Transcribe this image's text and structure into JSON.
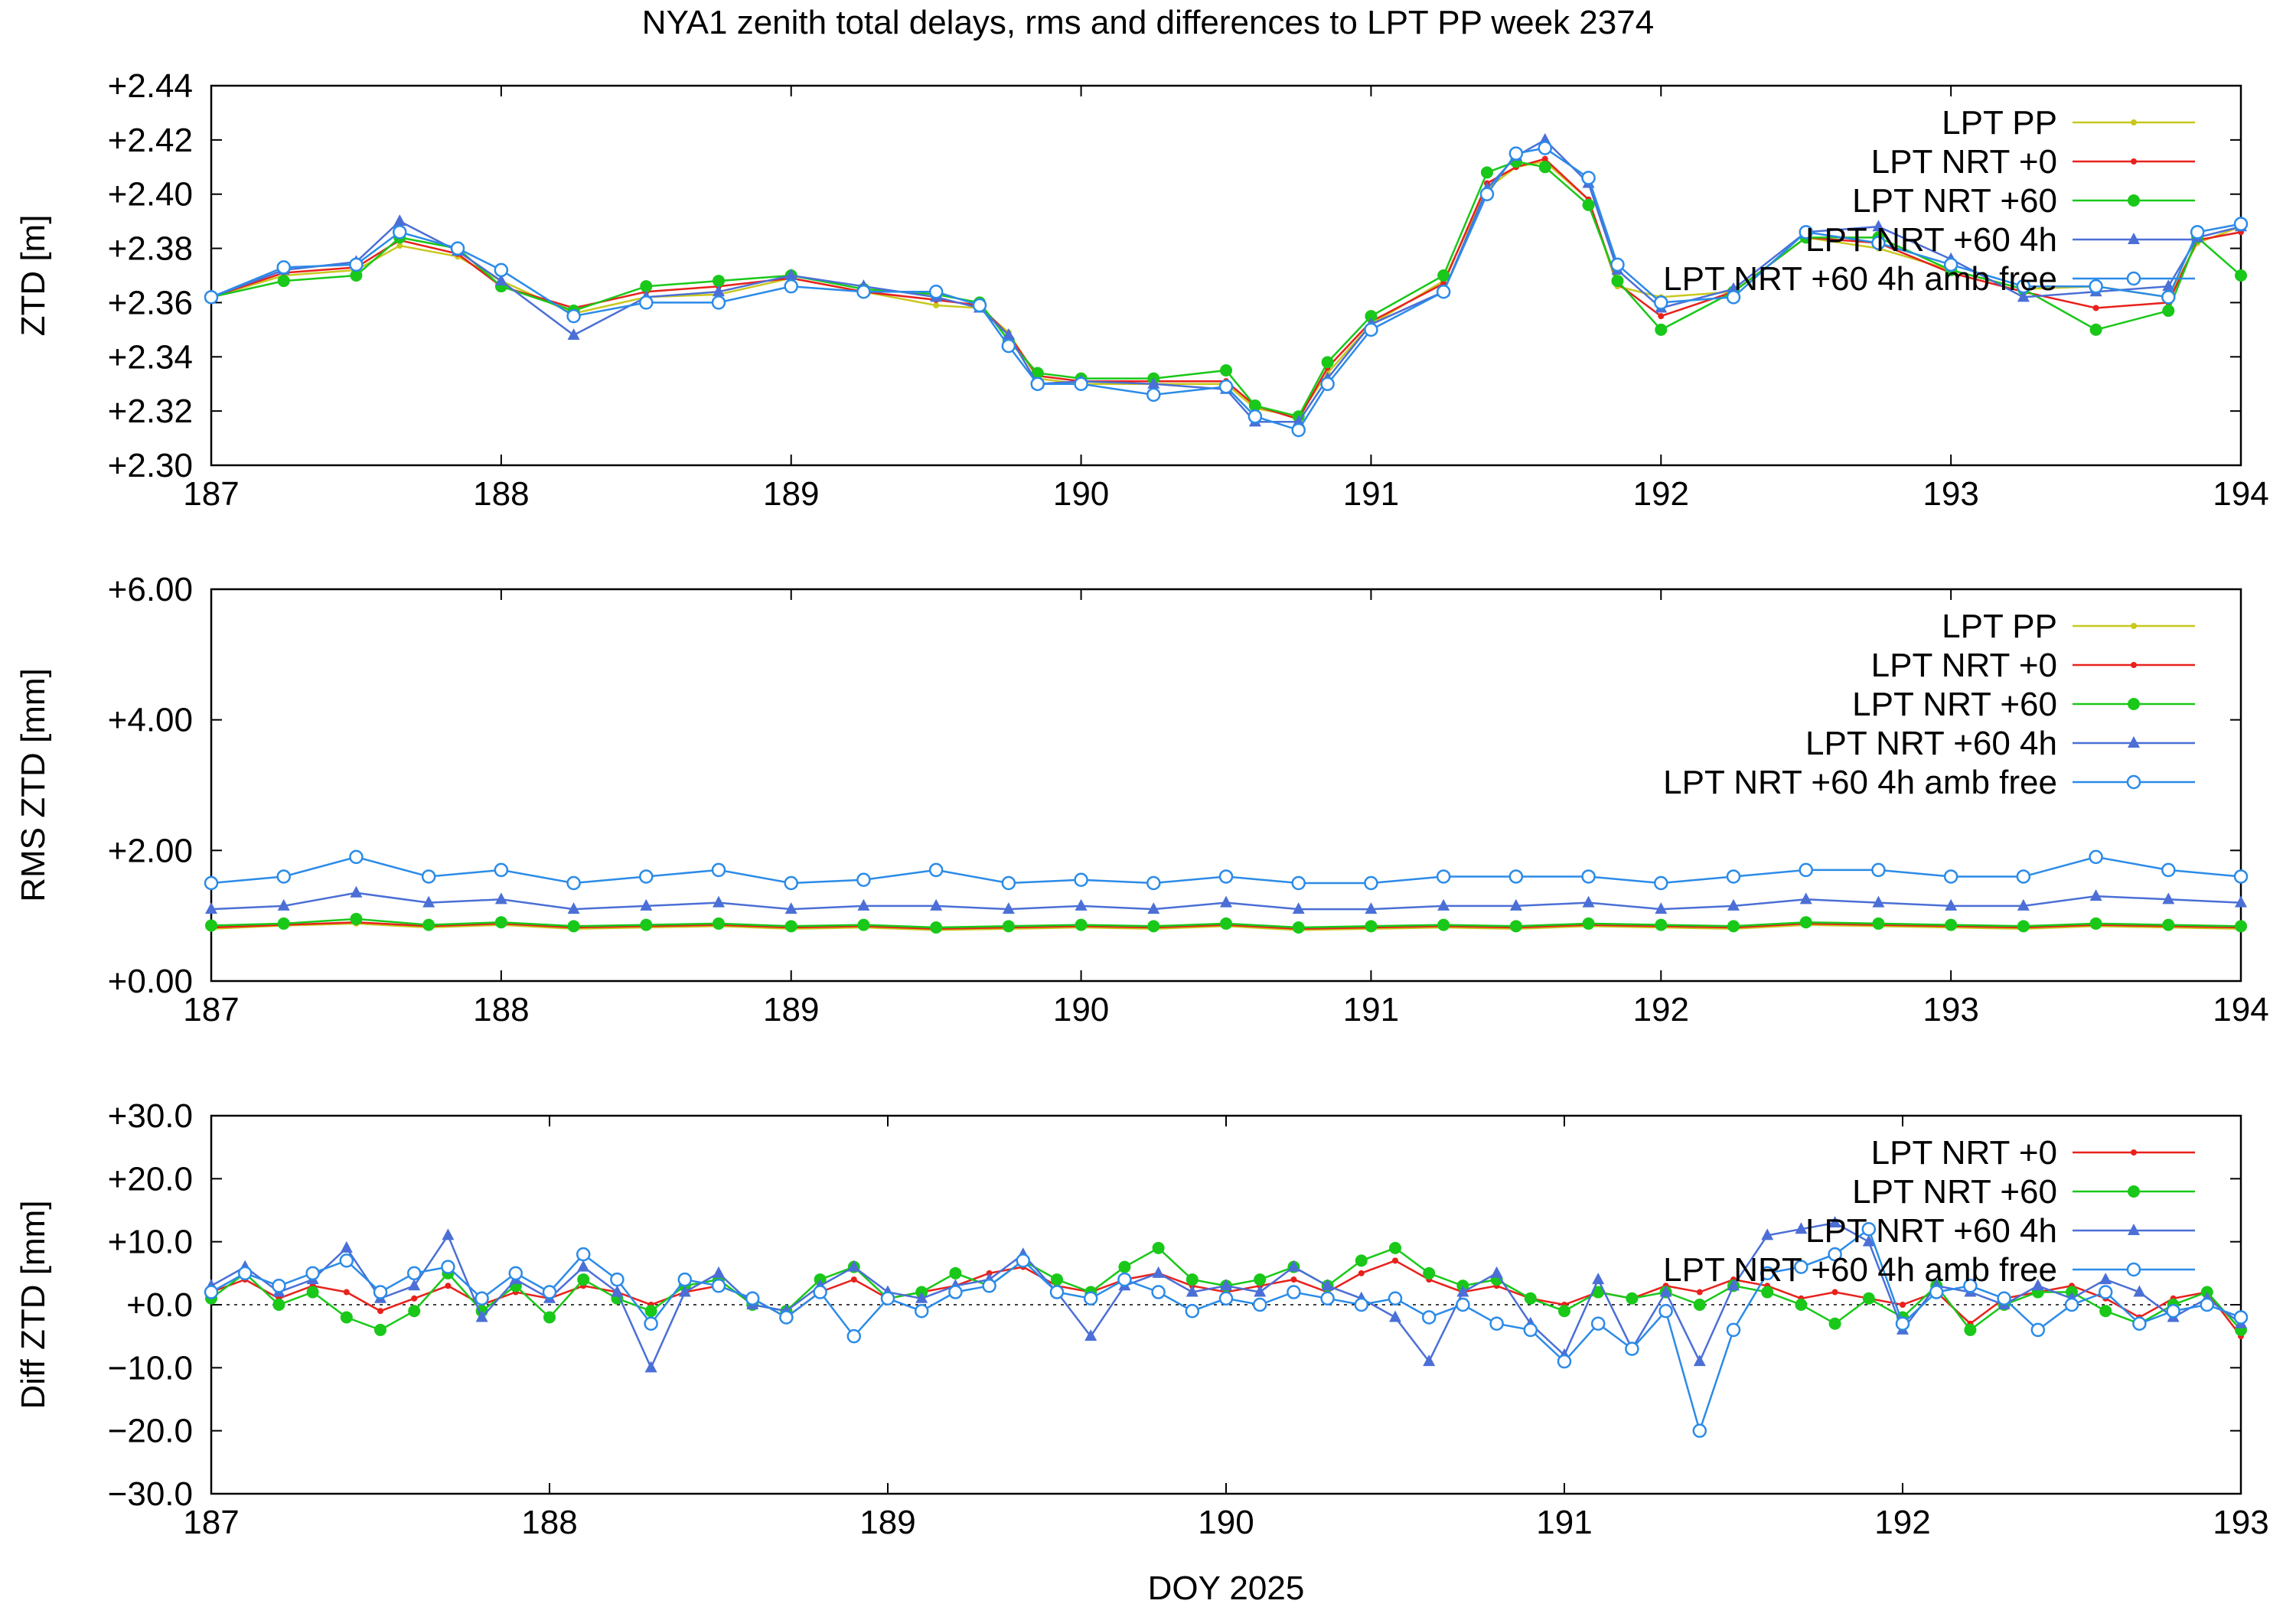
{
  "figure": {
    "title": "NYA1 zenith total delays, rms and differences to LPT PP week 2374",
    "xlabel": "DOY 2025"
  },
  "series_colors": {
    "LPT PP": "#c8c81e",
    "LPT NRT +0": "#e8211c",
    "LPT NRT +60": "#19c819",
    "LPT NRT +60 4h": "#4b6fd6",
    "LPT NRT +60 4h amb free": "#2b8be8"
  },
  "chart_data": [
    {
      "type": "line",
      "title": "",
      "ylabel": "ZTD [m]",
      "xlim": [
        187,
        194
      ],
      "ylim": [
        2.3,
        2.44
      ],
      "xticks": [
        "187",
        "188",
        "189",
        "190",
        "191",
        "192",
        "193",
        "194"
      ],
      "yticks": [
        "+2.30",
        "+2.32",
        "+2.34",
        "+2.36",
        "+2.38",
        "+2.40",
        "+2.42",
        "+2.44"
      ],
      "legend": [
        "LPT PP",
        "LPT NRT +0",
        "LPT NRT +60",
        "LPT NRT +60 4h",
        "LPT NRT +60 4h amb free"
      ],
      "legend_position": "top-right",
      "x": [
        187.0,
        187.25,
        187.5,
        187.65,
        187.85,
        188.0,
        188.25,
        188.5,
        188.75,
        189.0,
        189.25,
        189.5,
        189.65,
        189.75,
        189.85,
        190.0,
        190.25,
        190.5,
        190.6,
        190.75,
        190.85,
        191.0,
        191.25,
        191.4,
        191.5,
        191.6,
        191.75,
        191.85,
        192.0,
        192.25,
        192.5,
        192.75,
        193.0,
        193.25,
        193.5,
        193.75,
        193.85,
        194.0
      ],
      "series": [
        {
          "name": "LPT PP",
          "values": [
            2.362,
            2.37,
            2.372,
            2.381,
            2.377,
            2.368,
            2.356,
            2.362,
            2.363,
            2.369,
            2.364,
            2.359,
            2.358,
            2.349,
            2.332,
            2.33,
            2.33,
            2.33,
            2.321,
            2.318,
            2.334,
            2.352,
            2.368,
            2.402,
            2.41,
            2.412,
            2.398,
            2.366,
            2.362,
            2.364,
            2.384,
            2.38,
            2.372,
            2.365,
            2.366,
            2.362,
            2.382,
            2.388
          ]
        },
        {
          "name": "LPT NRT +0",
          "values": [
            2.362,
            2.371,
            2.373,
            2.383,
            2.378,
            2.366,
            2.358,
            2.364,
            2.366,
            2.369,
            2.364,
            2.361,
            2.359,
            2.348,
            2.333,
            2.331,
            2.331,
            2.331,
            2.322,
            2.317,
            2.336,
            2.353,
            2.367,
            2.404,
            2.41,
            2.413,
            2.398,
            2.367,
            2.355,
            2.364,
            2.384,
            2.382,
            2.371,
            2.364,
            2.358,
            2.36,
            2.383,
            2.386
          ]
        },
        {
          "name": "LPT NRT +60",
          "values": [
            2.362,
            2.368,
            2.37,
            2.384,
            2.38,
            2.366,
            2.357,
            2.366,
            2.368,
            2.37,
            2.365,
            2.363,
            2.36,
            2.346,
            2.334,
            2.332,
            2.332,
            2.335,
            2.322,
            2.318,
            2.338,
            2.355,
            2.37,
            2.408,
            2.412,
            2.41,
            2.396,
            2.368,
            2.35,
            2.364,
            2.384,
            2.384,
            2.372,
            2.365,
            2.35,
            2.357,
            2.384,
            2.37
          ]
        },
        {
          "name": "LPT NRT +60 4h",
          "values": [
            2.362,
            2.372,
            2.375,
            2.39,
            2.379,
            2.368,
            2.348,
            2.362,
            2.364,
            2.37,
            2.366,
            2.362,
            2.358,
            2.348,
            2.33,
            2.331,
            2.33,
            2.328,
            2.316,
            2.316,
            2.332,
            2.352,
            2.364,
            2.402,
            2.414,
            2.42,
            2.404,
            2.372,
            2.358,
            2.365,
            2.386,
            2.388,
            2.376,
            2.362,
            2.364,
            2.366,
            2.384,
            2.388
          ]
        },
        {
          "name": "LPT NRT +60 4h amb free",
          "values": [
            2.362,
            2.373,
            2.374,
            2.386,
            2.38,
            2.372,
            2.355,
            2.36,
            2.36,
            2.366,
            2.364,
            2.364,
            2.359,
            2.344,
            2.33,
            2.33,
            2.326,
            2.329,
            2.318,
            2.313,
            2.33,
            2.35,
            2.364,
            2.4,
            2.415,
            2.417,
            2.406,
            2.374,
            2.36,
            2.362,
            2.386,
            2.382,
            2.374,
            2.366,
            2.366,
            2.362,
            2.386,
            2.389
          ]
        }
      ]
    },
    {
      "type": "line",
      "title": "",
      "ylabel": "RMS ZTD [mm]",
      "xlim": [
        187,
        194
      ],
      "ylim": [
        0,
        6
      ],
      "xticks": [
        "187",
        "188",
        "189",
        "190",
        "191",
        "192",
        "193",
        "194"
      ],
      "yticks": [
        "+0.00",
        "+2.00",
        "+4.00",
        "+6.00"
      ],
      "legend": [
        "LPT PP",
        "LPT NRT +0",
        "LPT NRT +60",
        "LPT NRT +60 4h",
        "LPT NRT +60 4h amb free"
      ],
      "legend_position": "top-right",
      "x": [
        187.0,
        187.25,
        187.5,
        187.75,
        188.0,
        188.25,
        188.5,
        188.75,
        189.0,
        189.25,
        189.5,
        189.75,
        190.0,
        190.25,
        190.5,
        190.75,
        191.0,
        191.25,
        191.5,
        191.75,
        192.0,
        192.25,
        192.5,
        192.75,
        193.0,
        193.25,
        193.5,
        193.75,
        194.0
      ],
      "series": [
        {
          "name": "LPT PP",
          "values": [
            0.8,
            0.85,
            0.88,
            0.82,
            0.86,
            0.8,
            0.82,
            0.84,
            0.8,
            0.82,
            0.78,
            0.8,
            0.82,
            0.8,
            0.84,
            0.78,
            0.8,
            0.82,
            0.8,
            0.84,
            0.82,
            0.8,
            0.86,
            0.84,
            0.82,
            0.8,
            0.84,
            0.82,
            0.8
          ]
        },
        {
          "name": "LPT NRT +0",
          "values": [
            0.82,
            0.86,
            0.9,
            0.84,
            0.88,
            0.82,
            0.84,
            0.86,
            0.82,
            0.84,
            0.8,
            0.82,
            0.84,
            0.82,
            0.86,
            0.8,
            0.82,
            0.84,
            0.82,
            0.86,
            0.84,
            0.82,
            0.88,
            0.86,
            0.84,
            0.82,
            0.86,
            0.84,
            0.82
          ]
        },
        {
          "name": "LPT NRT +60",
          "values": [
            0.85,
            0.88,
            0.95,
            0.86,
            0.9,
            0.84,
            0.86,
            0.88,
            0.84,
            0.86,
            0.82,
            0.84,
            0.86,
            0.84,
            0.88,
            0.82,
            0.84,
            0.86,
            0.84,
            0.88,
            0.86,
            0.84,
            0.9,
            0.88,
            0.86,
            0.84,
            0.88,
            0.86,
            0.84
          ]
        },
        {
          "name": "LPT NRT +60 4h",
          "values": [
            1.1,
            1.15,
            1.35,
            1.2,
            1.25,
            1.1,
            1.15,
            1.2,
            1.1,
            1.15,
            1.15,
            1.1,
            1.15,
            1.1,
            1.2,
            1.1,
            1.1,
            1.15,
            1.15,
            1.2,
            1.1,
            1.15,
            1.25,
            1.2,
            1.15,
            1.15,
            1.3,
            1.25,
            1.2
          ]
        },
        {
          "name": "LPT NRT +60 4h amb free",
          "values": [
            1.5,
            1.6,
            1.9,
            1.6,
            1.7,
            1.5,
            1.6,
            1.7,
            1.5,
            1.55,
            1.7,
            1.5,
            1.55,
            1.5,
            1.6,
            1.5,
            1.5,
            1.6,
            1.6,
            1.6,
            1.5,
            1.6,
            1.7,
            1.7,
            1.6,
            1.6,
            1.9,
            1.7,
            1.6
          ]
        }
      ]
    },
    {
      "type": "line",
      "title": "",
      "ylabel": "Diff ZTD [mm]",
      "xlim": [
        187,
        193
      ],
      "ylim": [
        -30,
        30
      ],
      "xticks": [
        "187",
        "188",
        "189",
        "190",
        "191",
        "192",
        "193"
      ],
      "yticks": [
        "−30.0",
        "−20.0",
        "−10.0",
        "+0.0",
        "+10.0",
        "+20.0",
        "+30.0"
      ],
      "legend": [
        "LPT NRT +0",
        "LPT NRT +60",
        "LPT NRT +60 4h",
        "LPT NRT +60 4h amb free"
      ],
      "legend_position": "top-right",
      "zero_line": true,
      "x": [
        187.0,
        187.1,
        187.2,
        187.3,
        187.4,
        187.5,
        187.6,
        187.7,
        187.8,
        187.9,
        188.0,
        188.1,
        188.2,
        188.3,
        188.4,
        188.5,
        188.6,
        188.7,
        188.8,
        188.9,
        189.0,
        189.1,
        189.2,
        189.3,
        189.4,
        189.5,
        189.6,
        189.7,
        189.8,
        189.9,
        190.0,
        190.1,
        190.2,
        190.3,
        190.4,
        190.5,
        190.6,
        190.7,
        190.8,
        190.9,
        191.0,
        191.1,
        191.2,
        191.3,
        191.4,
        191.5,
        191.6,
        191.7,
        191.8,
        191.9,
        192.0,
        192.1,
        192.2,
        192.3,
        192.4,
        192.5,
        192.6,
        192.7,
        192.8,
        192.9,
        193.0
      ],
      "series": [
        {
          "name": "LPT NRT +0",
          "values": [
            2,
            4,
            1,
            3,
            2,
            -1,
            1,
            3,
            0,
            2,
            1,
            3,
            2,
            0,
            2,
            3,
            1,
            -2,
            2,
            4,
            1,
            2,
            3,
            5,
            6,
            3,
            2,
            4,
            5,
            3,
            2,
            3,
            4,
            2,
            5,
            7,
            4,
            2,
            3,
            1,
            0,
            2,
            1,
            3,
            2,
            4,
            3,
            1,
            2,
            1,
            0,
            2,
            -3,
            1,
            2,
            3,
            1,
            -2,
            1,
            2,
            -5
          ]
        },
        {
          "name": "LPT NRT +60",
          "values": [
            1,
            5,
            0,
            2,
            -2,
            -4,
            -1,
            5,
            -1,
            3,
            -2,
            4,
            1,
            -1,
            3,
            4,
            0,
            -1,
            4,
            6,
            1,
            2,
            5,
            3,
            7,
            4,
            2,
            6,
            9,
            4,
            3,
            4,
            6,
            3,
            7,
            9,
            5,
            3,
            4,
            1,
            -1,
            2,
            1,
            2,
            0,
            3,
            2,
            0,
            -3,
            1,
            -2,
            3,
            -4,
            0,
            2,
            2,
            -1,
            -3,
            0,
            2,
            -4
          ]
        },
        {
          "name": "LPT NRT +60 4h",
          "values": [
            3,
            6,
            2,
            4,
            9,
            1,
            3,
            11,
            -2,
            4,
            1,
            6,
            2,
            -10,
            2,
            5,
            0,
            -1,
            3,
            6,
            2,
            1,
            3,
            4,
            8,
            2,
            -5,
            3,
            5,
            2,
            3,
            2,
            6,
            3,
            1,
            -2,
            -9,
            2,
            5,
            -3,
            -8,
            4,
            -7,
            2,
            -9,
            3,
            11,
            12,
            13,
            10,
            -4,
            3,
            2,
            0,
            3,
            1,
            4,
            2,
            -2,
            1,
            -3
          ]
        },
        {
          "name": "LPT NRT +60 4h amb free",
          "values": [
            2,
            5,
            3,
            5,
            7,
            2,
            5,
            6,
            1,
            5,
            2,
            8,
            4,
            -3,
            4,
            3,
            1,
            -2,
            2,
            -5,
            1,
            -1,
            2,
            3,
            7,
            2,
            1,
            4,
            2,
            -1,
            1,
            0,
            2,
            1,
            0,
            1,
            -2,
            0,
            -3,
            -4,
            -9,
            -3,
            -7,
            -1,
            -20,
            -4,
            5,
            6,
            8,
            12,
            -3,
            2,
            3,
            1,
            -4,
            0,
            2,
            -3,
            -1,
            0,
            -2
          ]
        }
      ]
    }
  ]
}
